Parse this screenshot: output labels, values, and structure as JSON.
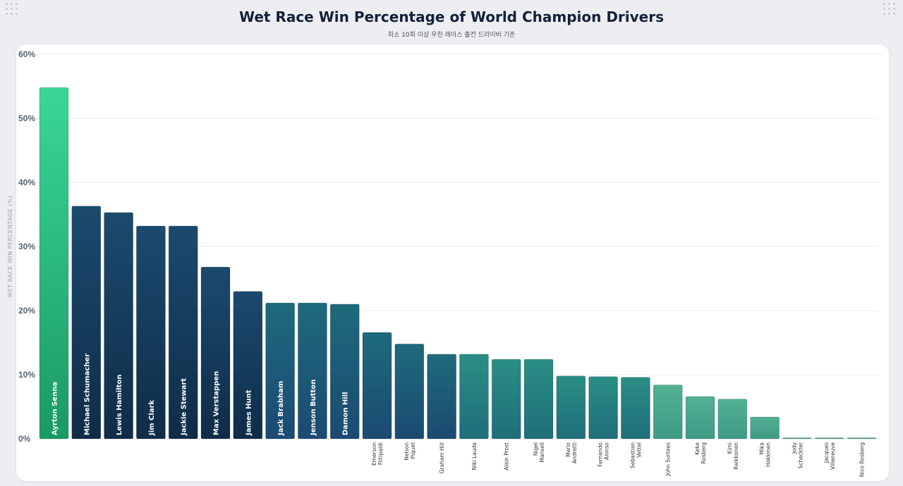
{
  "title": "Wet Race Win Percentage of World Champion Drivers",
  "subtitle": "최소 10회 이상 우천 레이스 출전 드라이버 기준",
  "chart_data": {
    "type": "bar",
    "title": "Wet Race Win Percentage of World Champion Drivers",
    "subtitle": "최소 10회 이상 우천 레이스 출전 드라이버 기준",
    "xlabel": "",
    "ylabel": "WET RACE WIN PERCENTAGE (%)",
    "ylim": [
      0,
      60
    ],
    "yticks": [
      "0%",
      "10%",
      "20%",
      "30%",
      "40%",
      "50%",
      "60%"
    ],
    "grid": true,
    "categories": [
      [
        "Ayrton Senna"
      ],
      [
        "Michael Schumacher"
      ],
      [
        "Lewis Hamilton"
      ],
      [
        "Jim Clark"
      ],
      [
        "Jackie Stewart"
      ],
      [
        "Max Verstappen"
      ],
      [
        "James Hunt"
      ],
      [
        "Jack Brabham"
      ],
      [
        "Jenson Button"
      ],
      [
        "Damon Hill"
      ],
      [
        "Emerson",
        "Fittipaldi"
      ],
      [
        "Nelson",
        "Piquet"
      ],
      [
        "Graham Hill"
      ],
      [
        "Niki Lauda"
      ],
      [
        "Alain Prost"
      ],
      [
        "Nigel",
        "Mansell"
      ],
      [
        "Mario",
        "Andretti"
      ],
      [
        "Fernando",
        "Alonso"
      ],
      [
        "Sebastian",
        "Vettel"
      ],
      [
        "John Surtees"
      ],
      [
        "Keke",
        "Rosberg"
      ],
      [
        "Kimi",
        "Raikkonen"
      ],
      [
        "Mika",
        "Hakkinen"
      ],
      [
        "Jody",
        "Scheckter"
      ],
      [
        "Jacques",
        "Villeneuve"
      ],
      [
        "Nico Rosberg"
      ]
    ],
    "values": [
      54.8,
      36.3,
      35.3,
      33.2,
      33.2,
      26.8,
      23.0,
      21.2,
      21.2,
      21.0,
      16.6,
      14.8,
      13.2,
      13.2,
      12.4,
      12.4,
      9.8,
      9.7,
      9.6,
      8.4,
      6.6,
      6.2,
      3.4,
      0,
      0,
      0
    ],
    "colors": {
      "leader": [
        "#3ad69a",
        "#1a9a62"
      ],
      "top": [
        "#1b4a6e",
        "#0f2c48"
      ],
      "mid": [
        "#1e6a7c",
        "#1b4a72"
      ],
      "teal": [
        "#2a8e84",
        "#1f6e7a"
      ],
      "light": [
        "#52b092",
        "#3f9a86"
      ]
    },
    "color_groups": [
      "leader",
      "top",
      "top",
      "top",
      "top",
      "top",
      "top",
      "mid",
      "mid",
      "mid",
      "mid",
      "mid",
      "mid",
      "teal",
      "teal",
      "teal",
      "teal",
      "teal",
      "teal",
      "light",
      "light",
      "light",
      "light",
      "light",
      "light",
      "light"
    ]
  }
}
